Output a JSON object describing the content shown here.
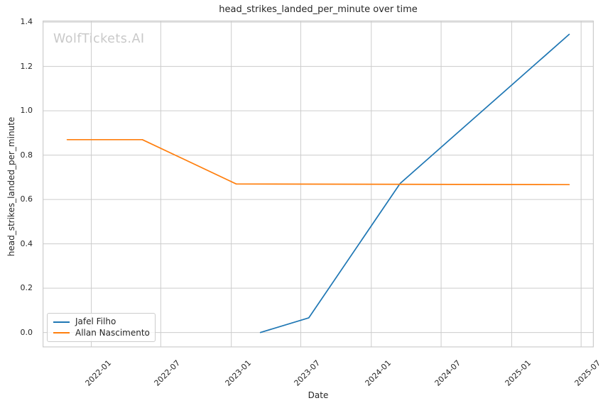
{
  "chart_data": {
    "type": "line",
    "title": "head_strikes_landed_per_minute over time",
    "xlabel": "Date",
    "ylabel": "head_strikes_landed_per_minute",
    "watermark": "WolfTickets.AI",
    "grid": true,
    "legend_position": "lower left",
    "xlim": [
      "2021-08-27",
      "2025-08-03"
    ],
    "ylim": [
      -0.067,
      1.407
    ],
    "x_tick_labels": [
      "2022-01",
      "2022-07",
      "2023-01",
      "2023-07",
      "2024-01",
      "2024-07",
      "2025-01",
      "2025-07"
    ],
    "y_ticks": [
      0.0,
      0.2,
      0.4,
      0.6,
      0.8,
      1.0,
      1.2,
      1.4
    ],
    "series": [
      {
        "name": "Jafel Filho",
        "color": "#1f77b4",
        "points": [
          [
            "2023-03-18",
            0.0
          ],
          [
            "2023-07-22",
            0.066
          ],
          [
            "2024-03-16",
            0.672
          ],
          [
            "2025-05-31",
            1.345
          ]
        ]
      },
      {
        "name": "Allan Nascimento",
        "color": "#ff7f0e",
        "points": [
          [
            "2021-10-30",
            0.87
          ],
          [
            "2022-05-14",
            0.87
          ],
          [
            "2023-01-14",
            0.67
          ],
          [
            "2025-05-31",
            0.667
          ]
        ]
      }
    ],
    "colors": {
      "grid": "#cccccc",
      "spine": "#cccccc",
      "text": "#262626",
      "watermark": "#c9c9c9",
      "background": "#ffffff"
    }
  }
}
